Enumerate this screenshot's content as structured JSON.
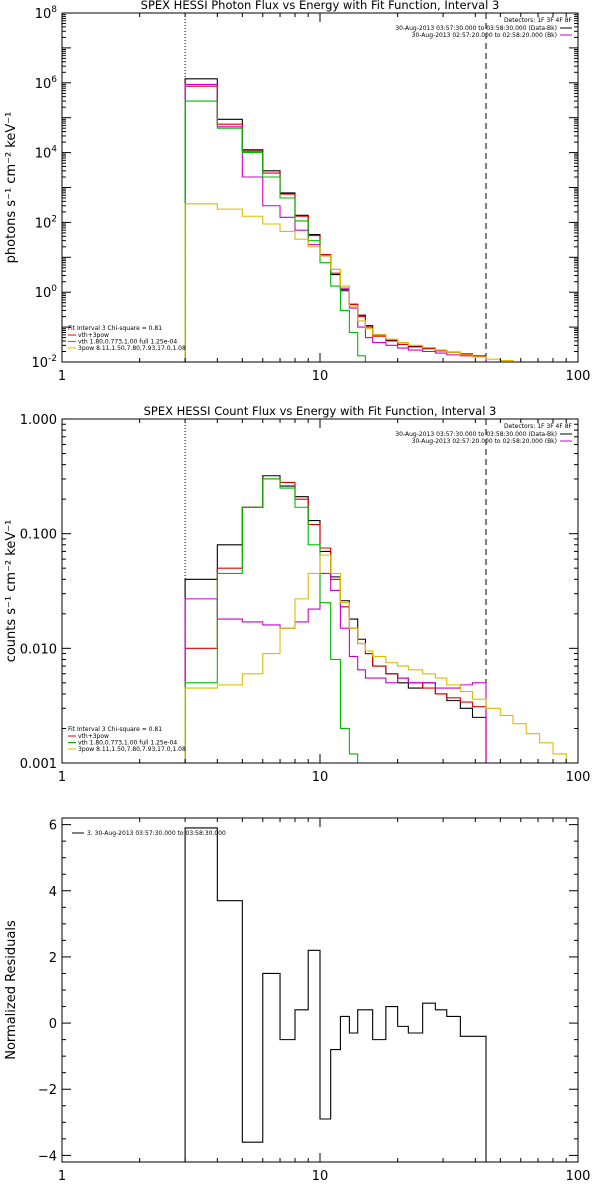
{
  "chart_data": [
    {
      "type": "line",
      "id": "photon",
      "title": "SPEX HESSI Photon Flux vs Energy with Fit Function, Interval 3",
      "ylabel": "photons s⁻¹ cm⁻² keV⁻¹",
      "xlabel": "",
      "xscale": "log",
      "yscale": "log",
      "xlim": [
        1,
        100
      ],
      "ylim": [
        0.01,
        100000000
      ],
      "xticks": [
        {
          "v": 1,
          "label": "1"
        },
        {
          "v": 10,
          "label": "10"
        },
        {
          "v": 100,
          "label": "100"
        }
      ],
      "yticks": [
        {
          "v": 0.01,
          "base": "10",
          "exp": "-2"
        },
        {
          "v": 1,
          "base": "10",
          "exp": "0"
        },
        {
          "v": 100,
          "base": "10",
          "exp": "2"
        },
        {
          "v": 10000,
          "base": "10",
          "exp": "4"
        },
        {
          "v": 1000000,
          "base": "10",
          "exp": "6"
        },
        {
          "v": 100000000,
          "base": "10",
          "exp": "8"
        }
      ],
      "vlines": [
        {
          "x": 3,
          "style": "dotted"
        },
        {
          "x": 44,
          "style": "dashed"
        }
      ],
      "legend_topright": {
        "header": "Detectors: 1F 3F 4F 8F",
        "lines": [
          {
            "text": "30-Aug-2013 03:57:30.000 to 03:58:30.000 (Data-Bk)",
            "color": "#000000"
          },
          {
            "text": "30-Aug-2013 02:57:20.000 to 02:58:20.000 (Bk)",
            "color": "#cc00cc"
          }
        ]
      },
      "legend_bottomleft": {
        "header": "Fit Interval 3   Chi-square = 0.81",
        "lines": [
          {
            "text": "vth+3pow",
            "color": "#dd0000"
          },
          {
            "text": "vth 1.80,0.773,1.00  full 1.25e-04",
            "color": "#00bb00"
          },
          {
            "text": "3pow 8.11,1.50,7.80,7.93,17.0,1.08",
            "color": "#ddbb00"
          }
        ]
      },
      "series": [
        {
          "name": "Data-Bk",
          "color": "#000000",
          "edges": [
            3,
            4,
            5,
            6,
            7,
            8,
            9,
            10,
            11,
            12,
            13,
            14,
            15,
            16,
            18,
            20,
            22,
            25,
            28,
            31,
            35,
            39,
            44
          ],
          "values": [
            1300000,
            90000,
            12000,
            3000,
            700,
            160,
            45,
            11,
            3.2,
            1.1,
            0.45,
            0.22,
            0.11,
            0.06,
            0.042,
            0.032,
            0.028,
            0.025,
            0.021,
            0.019,
            0.017,
            0.014
          ]
        },
        {
          "name": "vth+3pow",
          "color": "#dd0000",
          "edges": [
            3,
            4,
            5,
            6,
            7,
            8,
            9,
            10,
            11,
            12,
            13,
            14,
            15,
            16,
            18,
            20,
            22,
            25,
            28,
            31,
            35,
            39,
            44
          ],
          "values": [
            800000,
            65000,
            11000,
            2600,
            650,
            150,
            42,
            12,
            3.5,
            1.2,
            0.45,
            0.2,
            0.1,
            0.055,
            0.04,
            0.032,
            0.027,
            0.024,
            0.021,
            0.019,
            0.017,
            0.015
          ]
        },
        {
          "name": "Bk",
          "color": "#cc00cc",
          "edges": [
            3,
            4,
            5,
            6,
            7,
            8,
            9,
            10,
            11,
            12,
            13,
            14,
            15,
            16,
            18,
            20,
            22,
            25,
            28,
            31,
            35,
            39,
            44
          ],
          "values": [
            900000,
            55000,
            2000,
            300,
            140,
            60,
            23,
            11,
            4.5,
            1.3,
            0.35,
            0.1,
            0.05,
            0.036,
            0.03,
            0.025,
            0.022,
            0.02,
            0.018,
            0.016,
            0.015,
            0.014
          ]
        },
        {
          "name": "vth",
          "color": "#00bb00",
          "edges": [
            3,
            4,
            5,
            6,
            7,
            8,
            9,
            10,
            11,
            12,
            13,
            14,
            15
          ],
          "values": [
            300000,
            50000,
            10000,
            2000,
            500,
            110,
            30,
            7,
            1.5,
            0.3,
            0.07,
            0.015
          ]
        },
        {
          "name": "3pow",
          "color": "#ddbb00",
          "edges": [
            3,
            4,
            5,
            6,
            7,
            8,
            9,
            10,
            11,
            12,
            13,
            14,
            15,
            16,
            18,
            20,
            22,
            25,
            28,
            31,
            35,
            39,
            44,
            50,
            56,
            63
          ],
          "values": [
            340,
            240,
            150,
            90,
            55,
            33,
            20,
            11,
            4.5,
            1.5,
            0.4,
            0.15,
            0.09,
            0.06,
            0.045,
            0.036,
            0.03,
            0.026,
            0.022,
            0.019,
            0.016,
            0.014,
            0.012,
            0.011,
            0.01
          ]
        }
      ]
    },
    {
      "type": "line",
      "id": "count",
      "title": "SPEX HESSI Count Flux vs Energy with Fit Function, Interval 3",
      "ylabel": "counts s⁻¹ cm⁻² keV⁻¹",
      "xlabel": "",
      "xscale": "log",
      "yscale": "log",
      "xlim": [
        1,
        100
      ],
      "ylim": [
        0.001,
        1
      ],
      "xticks": [
        {
          "v": 1,
          "label": "1"
        },
        {
          "v": 10,
          "label": "10"
        },
        {
          "v": 100,
          "label": "100"
        }
      ],
      "yticks": [
        {
          "v": 0.001,
          "label": "0.001"
        },
        {
          "v": 0.01,
          "label": "0.010"
        },
        {
          "v": 0.1,
          "label": "0.100"
        },
        {
          "v": 1,
          "label": "1.000"
        }
      ],
      "vlines": [
        {
          "x": 3,
          "style": "dotted"
        },
        {
          "x": 44,
          "style": "dashed"
        }
      ],
      "legend_topright": {
        "header": "Detectors: 1F 3F 4F 8F",
        "lines": [
          {
            "text": "30-Aug-2013 03:57:30.000 to 03:58:30.000 (Data-Bk)",
            "color": "#000000"
          },
          {
            "text": "30-Aug-2013 02:57:20.000 to 02:58:20.000 (Bk)",
            "color": "#cc00cc"
          }
        ]
      },
      "legend_bottomleft": {
        "header": "Fit Interval 3   Chi-square = 0.81",
        "lines": [
          {
            "text": "vth+3pow",
            "color": "#dd0000"
          },
          {
            "text": "vth 1.80,0.773,1.00  full 1.25e-04",
            "color": "#00bb00"
          },
          {
            "text": "3pow 8.11,1.50,7.80,7.93,17.0,1.08",
            "color": "#ddbb00"
          }
        ]
      },
      "series": [
        {
          "name": "Data-Bk",
          "color": "#000000",
          "edges": [
            3,
            4,
            5,
            6,
            7,
            8,
            9,
            10,
            11,
            12,
            13,
            14,
            15,
            16,
            18,
            20,
            22,
            25,
            28,
            31,
            35,
            39,
            44
          ],
          "values": [
            0.04,
            0.08,
            0.17,
            0.32,
            0.26,
            0.21,
            0.13,
            0.07,
            0.042,
            0.026,
            0.018,
            0.012,
            0.009,
            0.007,
            0.006,
            0.005,
            0.0045,
            0.005,
            0.004,
            0.0035,
            0.003,
            0.0025
          ]
        },
        {
          "name": "vth+3pow",
          "color": "#dd0000",
          "edges": [
            3,
            4,
            5,
            6,
            7,
            8,
            9,
            10,
            11,
            12,
            13,
            14,
            15,
            16,
            18,
            20,
            22,
            25,
            28,
            31,
            35,
            39,
            44
          ],
          "values": [
            0.01,
            0.05,
            0.17,
            0.3,
            0.28,
            0.2,
            0.12,
            0.075,
            0.04,
            0.023,
            0.015,
            0.011,
            0.009,
            0.007,
            0.006,
            0.0055,
            0.005,
            0.0045,
            0.004,
            0.0037,
            0.0034,
            0.0031
          ]
        },
        {
          "name": "Bk",
          "color": "#cc00cc",
          "edges": [
            3,
            4,
            5,
            6,
            7,
            8,
            9,
            10,
            11,
            12,
            13,
            14,
            15,
            16,
            18,
            20,
            22,
            25,
            28,
            31,
            35,
            39,
            44
          ],
          "values": [
            0.027,
            0.018,
            0.017,
            0.016,
            0.015,
            0.017,
            0.022,
            0.045,
            0.032,
            0.015,
            0.0085,
            0.0065,
            0.0055,
            0.0055,
            0.005,
            0.0055,
            0.005,
            0.005,
            0.0045,
            0.0045,
            0.0048,
            0.005
          ]
        },
        {
          "name": "vth",
          "color": "#00bb00",
          "edges": [
            3,
            4,
            5,
            6,
            7,
            8,
            9,
            10,
            11,
            12,
            13,
            14,
            15
          ],
          "values": [
            0.005,
            0.045,
            0.17,
            0.3,
            0.25,
            0.17,
            0.08,
            0.025,
            0.008,
            0.002,
            0.0012,
            0.001
          ]
        },
        {
          "name": "3pow",
          "color": "#ddbb00",
          "edges": [
            3,
            4,
            5,
            6,
            7,
            8,
            9,
            10,
            11,
            12,
            13,
            14,
            15,
            16,
            18,
            20,
            22,
            25,
            28,
            31,
            35,
            39,
            44,
            50,
            56,
            63,
            71,
            80,
            90,
            100
          ],
          "values": [
            0.0045,
            0.0048,
            0.006,
            0.009,
            0.015,
            0.027,
            0.045,
            0.065,
            0.045,
            0.025,
            0.015,
            0.011,
            0.0095,
            0.0085,
            0.0075,
            0.007,
            0.0065,
            0.006,
            0.0055,
            0.0048,
            0.0042,
            0.0036,
            0.003,
            0.0026,
            0.0022,
            0.0018,
            0.0015,
            0.0012,
            0.001
          ]
        }
      ]
    },
    {
      "type": "line",
      "id": "resid",
      "title": "",
      "ylabel": "Normalized Residuals",
      "xlabel": "",
      "xscale": "log",
      "yscale": "linear",
      "xlim": [
        1,
        100
      ],
      "ylim": [
        -4.2,
        6.2
      ],
      "xticks": [
        {
          "v": 1,
          "label": "1"
        },
        {
          "v": 10,
          "label": "10"
        },
        {
          "v": 100,
          "label": "100"
        }
      ],
      "yticks": [
        {
          "v": -4,
          "label": "−4"
        },
        {
          "v": -2,
          "label": "−2"
        },
        {
          "v": 0,
          "label": "0"
        },
        {
          "v": 2,
          "label": "2"
        },
        {
          "v": 4,
          "label": "4"
        },
        {
          "v": 6,
          "label": "6"
        }
      ],
      "legend_topleft": {
        "lines": [
          {
            "text": "3. 30-Aug-2013 03:57:30.000 to 03:58:30.000",
            "color": "#000000"
          }
        ]
      },
      "series": [
        {
          "name": "residuals",
          "color": "#000000",
          "drop_to": -4.2,
          "edges": [
            3,
            4,
            5,
            6,
            7,
            8,
            9,
            10,
            11,
            12,
            13,
            14,
            15,
            16,
            18,
            20,
            22,
            25,
            28,
            31,
            35,
            39,
            44
          ],
          "values": [
            5.9,
            3.7,
            -3.6,
            1.5,
            -0.5,
            0.4,
            2.2,
            -2.9,
            -0.8,
            0.2,
            -0.3,
            0.4,
            0.4,
            -0.5,
            0.5,
            -0.1,
            -0.3,
            0.6,
            0.4,
            0.2,
            -0.4,
            -0.4
          ]
        }
      ]
    }
  ]
}
